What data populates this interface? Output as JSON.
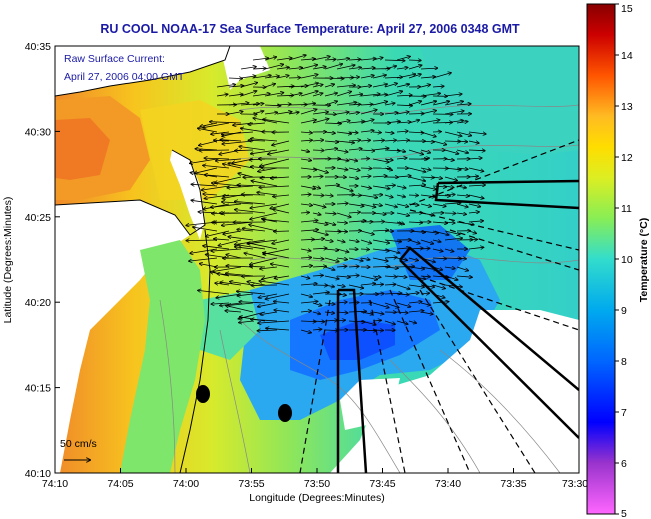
{
  "title": "RU COOL  NOAA-17  Sea Surface Temperature:  April 27, 2006 0348 GMT",
  "map": {
    "xlabel": "Longitude (Degrees:Minutes)",
    "ylabel": "Latitude (Degrees:Minutes)",
    "x_ticks": [
      "74:10",
      "74:05",
      "74:00",
      "73:55",
      "73:50",
      "73:45",
      "73:40",
      "73:35",
      "73:30"
    ],
    "y_ticks": [
      "40:35",
      "40:30",
      "40:25",
      "40:20",
      "40:15",
      "40:10"
    ],
    "overlay": {
      "line1": "Raw Surface Current:",
      "line2": "April 27, 2006 04:00 GMT"
    },
    "scale_label": "50 cm/s"
  },
  "colorbar": {
    "label": "Temperature (°C)",
    "ticks": [
      "15",
      "14",
      "13",
      "12",
      "11",
      "10",
      "9",
      "8",
      "7",
      "6",
      "5"
    ],
    "min": 5,
    "max": 15,
    "colors": [
      "#ff66ff",
      "#9933cc",
      "#0000ff",
      "#0066ff",
      "#00aaee",
      "#33ddcc",
      "#88ee55",
      "#ddee22",
      "#ffbb22",
      "#ff5500",
      "#cc0000",
      "#880000"
    ]
  }
}
